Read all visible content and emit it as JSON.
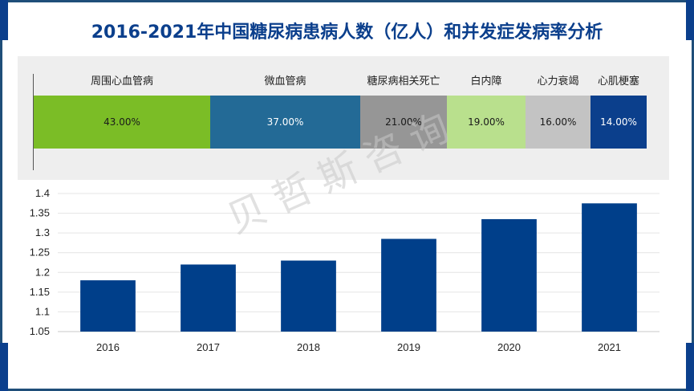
{
  "title": "2016-2021年中国糖尿病患病人数（亿人）和并发症发病率分析",
  "watermark": "贝哲斯咨询",
  "complications": {
    "items": [
      {
        "label": "周围心血管病",
        "value": "43.00%",
        "color": "#7bbd26",
        "text_color": "#1a1a1a"
      },
      {
        "label": "微血管病",
        "value": "37.00%",
        "color": "#236a96",
        "text_color": "#ffffff"
      },
      {
        "label": "糖尿病相关死亡",
        "value": "21.00%",
        "color": "#969696",
        "text_color": "#1a1a1a"
      },
      {
        "label": "白内障",
        "value": "19.00%",
        "color": "#b9e08d",
        "text_color": "#1a1a1a"
      },
      {
        "label": "心力衰竭",
        "value": "16.00%",
        "color": "#c3c3c3",
        "text_color": "#1a1a1a"
      },
      {
        "label": "心肌梗塞",
        "value": "14.00%",
        "color": "#0b3f8c",
        "text_color": "#ffffff"
      }
    ]
  },
  "chart_data": {
    "type": "bar",
    "categories": [
      "2016",
      "2017",
      "2018",
      "2019",
      "2020",
      "2021"
    ],
    "values": [
      1.18,
      1.22,
      1.23,
      1.285,
      1.335,
      1.375
    ],
    "ylim": [
      1.05,
      1.4
    ],
    "yticks": [
      "1.05",
      "1.1",
      "1.15",
      "1.2",
      "1.25",
      "1.3",
      "1.35",
      "1.4"
    ],
    "grid": true,
    "bar_color": "#003f8a"
  }
}
